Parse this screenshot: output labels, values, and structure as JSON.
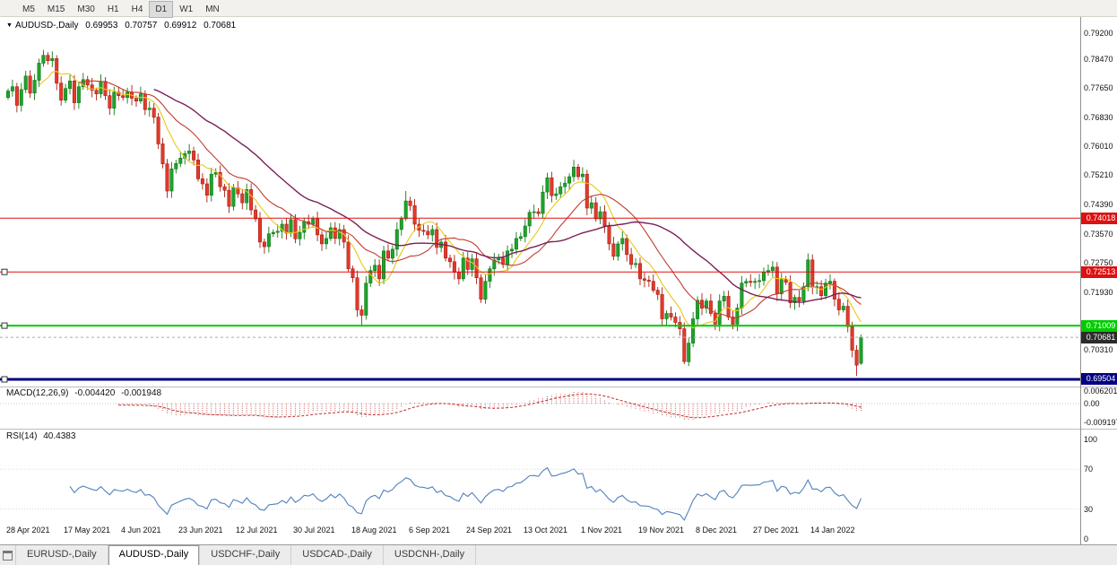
{
  "toolbar": {
    "timeframes": [
      "M5",
      "M15",
      "M30",
      "H1",
      "H4",
      "D1",
      "W1",
      "MN"
    ],
    "active": "D1"
  },
  "window": {
    "tabs": [
      {
        "label": "EURUSD-,Daily",
        "active": false
      },
      {
        "label": "AUDUSD-,Daily",
        "active": true
      },
      {
        "label": "USDCHF-,Daily",
        "active": false
      },
      {
        "label": "USDCAD-,Daily",
        "active": false
      },
      {
        "label": "USDCNH-,Daily",
        "active": false
      }
    ]
  },
  "chart": {
    "title": {
      "symbol": "AUDUSD-,Daily",
      "open": "0.69953",
      "high": "0.70757",
      "low": "0.69912",
      "close": "0.70681"
    },
    "axis": {
      "price_ticks": [
        {
          "price": 0.792,
          "label": "0.79200"
        },
        {
          "price": 0.7847,
          "label": "0.78470"
        },
        {
          "price": 0.7765,
          "label": "0.77650"
        },
        {
          "price": 0.7683,
          "label": "0.76830"
        },
        {
          "price": 0.7601,
          "label": "0.76010"
        },
        {
          "price": 0.7521,
          "label": "0.75210"
        },
        {
          "price": 0.7439,
          "label": "0.74390"
        },
        {
          "price": 0.7357,
          "label": "0.73570"
        },
        {
          "price": 0.7275,
          "label": "0.72750"
        },
        {
          "price": 0.7193,
          "label": "0.71930"
        },
        {
          "price": 0.7031,
          "label": "0.70310"
        }
      ],
      "macd_ticks": [
        {
          "v": 0.006201,
          "label": "0.006201"
        },
        {
          "v": 0,
          "label": "0.00"
        },
        {
          "v": -0.009197,
          "label": "-0.009197"
        }
      ],
      "rsi_ticks": [
        {
          "v": 100,
          "label": "100"
        },
        {
          "v": 70,
          "label": "70"
        },
        {
          "v": 30,
          "label": "30"
        },
        {
          "v": 0,
          "label": "0"
        }
      ]
    },
    "lines": [
      {
        "name": "resistance-upper",
        "price": 0.74018,
        "label": "0.74018",
        "color": "#dd1111",
        "width": 1,
        "handle": false
      },
      {
        "name": "resistance-lower",
        "price": 0.72513,
        "label": "0.72513",
        "color": "#dd1111",
        "width": 1,
        "handle": true
      },
      {
        "name": "support-green",
        "price": 0.71009,
        "label": "0.71009",
        "color": "#00cc00",
        "width": 2,
        "handle": true
      },
      {
        "name": "support-blue",
        "price": 0.69504,
        "label": "0.69504",
        "color": "#000080",
        "width": 3,
        "handle": true
      }
    ],
    "current_price": {
      "value": 0.70681,
      "label": "0.70681",
      "bg": "#2b2b2b"
    },
    "indicators": {
      "macd": {
        "title": "MACD(12,26,9)",
        "value1": "-0.004420",
        "value2": "-0.001948",
        "fast": 12,
        "slow": 26,
        "signal": 9
      },
      "rsi": {
        "title": "RSI(14)",
        "value": "40.4383",
        "period": 14
      }
    },
    "colors": {
      "up": "#1fa32b",
      "up_border": "#0e7a18",
      "down": "#e33a2c",
      "down_border": "#a81d10",
      "ma_fast": "#e9c71b",
      "ma_mid": "#c23b2e",
      "ma_slow": "#7a2058",
      "macd": "#c05a5a",
      "macd_signal": "#c22727",
      "rsi": "#4f81bd"
    }
  },
  "chart_data": {
    "type": "candlestick",
    "symbol": "AUDUSD Daily",
    "x_labels": [
      "28 Apr 2021",
      "17 May 2021",
      "4 Jun 2021",
      "23 Jun 2021",
      "12 Jul 2021",
      "30 Jul 2021",
      "18 Aug 2021",
      "6 Sep 2021",
      "24 Sep 2021",
      "13 Oct 2021",
      "1 Nov 2021",
      "19 Nov 2021",
      "8 Dec 2021",
      "27 Dec 2021",
      "14 Jan 2022"
    ],
    "label_step_bars": 13,
    "y_axis": {
      "min": 0.6933,
      "max": 0.795
    },
    "first_open": 0.774,
    "closes": [
      0.7758,
      0.777,
      0.7718,
      0.7762,
      0.78,
      0.7752,
      0.7788,
      0.7836,
      0.7858,
      0.7843,
      0.7849,
      0.778,
      0.7732,
      0.7765,
      0.7786,
      0.7725,
      0.777,
      0.779,
      0.7775,
      0.776,
      0.775,
      0.7785,
      0.7745,
      0.771,
      0.7755,
      0.7745,
      0.774,
      0.7755,
      0.7738,
      0.773,
      0.775,
      0.7706,
      0.771,
      0.7685,
      0.761,
      0.7554,
      0.7478,
      0.754,
      0.7555,
      0.757,
      0.7583,
      0.759,
      0.7565,
      0.7512,
      0.7498,
      0.7466,
      0.7525,
      0.753,
      0.749,
      0.748,
      0.7435,
      0.7487,
      0.747,
      0.7445,
      0.7482,
      0.7425,
      0.74,
      0.7335,
      0.7322,
      0.7358,
      0.7362,
      0.7365,
      0.7385,
      0.736,
      0.7398,
      0.7344,
      0.7362,
      0.7392,
      0.7385,
      0.74,
      0.7355,
      0.733,
      0.7345,
      0.7375,
      0.7345,
      0.737,
      0.7335,
      0.726,
      0.7235,
      0.7145,
      0.713,
      0.722,
      0.7255,
      0.727,
      0.7232,
      0.731,
      0.729,
      0.7315,
      0.737,
      0.74,
      0.745,
      0.7437,
      0.7385,
      0.7368,
      0.7365,
      0.7355,
      0.737,
      0.732,
      0.7335,
      0.729,
      0.728,
      0.725,
      0.7232,
      0.729,
      0.7258,
      0.7288,
      0.7235,
      0.7175,
      0.7225,
      0.726,
      0.7285,
      0.729,
      0.7272,
      0.731,
      0.7315,
      0.7345,
      0.735,
      0.738,
      0.7418,
      0.742,
      0.7415,
      0.7475,
      0.7515,
      0.7465,
      0.747,
      0.749,
      0.75,
      0.7518,
      0.7545,
      0.7518,
      0.7525,
      0.743,
      0.7445,
      0.74,
      0.742,
      0.738,
      0.733,
      0.7295,
      0.733,
      0.7345,
      0.73,
      0.7272,
      0.7275,
      0.7232,
      0.7228,
      0.7225,
      0.72,
      0.7188,
      0.712,
      0.7135,
      0.7125,
      0.711,
      0.7092,
      0.7,
      0.7052,
      0.712,
      0.7172,
      0.715,
      0.717,
      0.7135,
      0.7105,
      0.717,
      0.7183,
      0.7125,
      0.7105,
      0.715,
      0.722,
      0.7225,
      0.7222,
      0.7225,
      0.7227,
      0.725,
      0.7255,
      0.7265,
      0.719,
      0.723,
      0.7222,
      0.7165,
      0.718,
      0.717,
      0.721,
      0.7285,
      0.7208,
      0.721,
      0.7185,
      0.722,
      0.7225,
      0.7175,
      0.7145,
      0.7155,
      0.7098,
      0.7032,
      0.699,
      0.70681
    ],
    "overrides": {
      "8": [
        0.7836,
        0.7873,
        0.7826,
        0.7858
      ],
      "34": [
        0.7685,
        0.7697,
        0.7596,
        0.761
      ],
      "80": [
        0.7145,
        0.7158,
        0.7102,
        0.713
      ],
      "90": [
        0.74,
        0.7478,
        0.7394,
        0.745
      ],
      "153": [
        0.7092,
        0.711,
        0.6993,
        0.7
      ],
      "192": [
        0.7032,
        0.7046,
        0.696,
        0.699
      ],
      "193": [
        0.69953,
        0.70757,
        0.69912,
        0.70681
      ]
    },
    "moving_averages": [
      {
        "period": 8,
        "color_key": "ma_fast"
      },
      {
        "period": 17,
        "color_key": "ma_mid"
      },
      {
        "period": 34,
        "color_key": "ma_slow"
      }
    ],
    "hlines": [
      0.74018,
      0.72513,
      0.71009,
      0.69504
    ],
    "last_ohlc": [
      0.69953,
      0.70757,
      0.69912,
      0.70681
    ],
    "macd_last": [
      -0.00442,
      -0.001948
    ],
    "rsi_last": 40.4383
  }
}
